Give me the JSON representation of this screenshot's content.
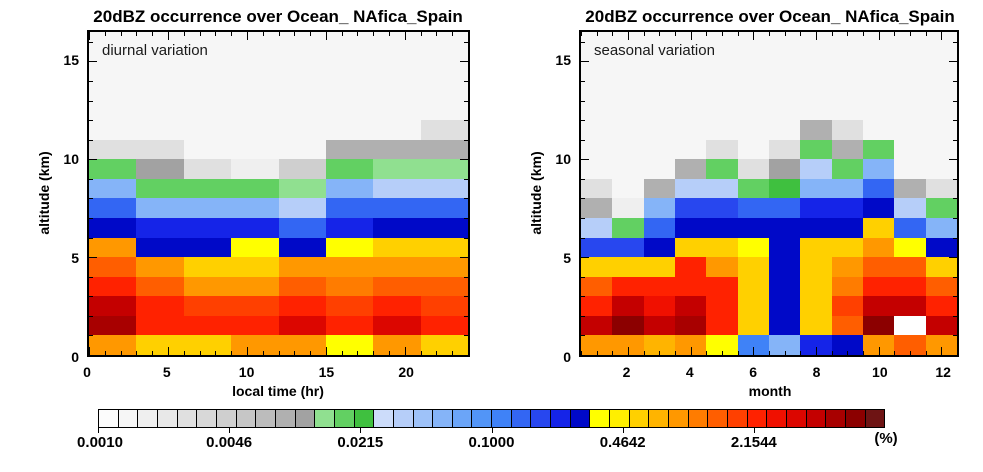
{
  "page": {
    "background": "#ffffff"
  },
  "chart_data": [
    {
      "type": "heatmap",
      "title": "20dBZ occurrence over Ocean_ NAfica_Spain",
      "annotation": "diurnal variation",
      "xlabel": "local time (hr)",
      "ylabel": "altitude (km)",
      "x_range": [
        0,
        24
      ],
      "x_major_ticks": [
        0,
        5,
        10,
        15,
        20
      ],
      "x_minor_step": 1,
      "y_range": [
        0,
        16.5
      ],
      "y_major_ticks": [
        0,
        5,
        10,
        15
      ],
      "y_minor_step": 1,
      "x_bin_hours": 3,
      "y_bin_km": 1,
      "legend": "occurrence percent, log color scale 0.001-10",
      "values_rows_top_to_bottom": [
        [
          0.0013,
          0.0013,
          0.0013,
          0.0013,
          0.0013,
          0.0013,
          0.0013,
          0.0013
        ],
        [
          0.0013,
          0.0013,
          0.0013,
          0.0013,
          0.0013,
          0.0013,
          0.0013,
          0.0013
        ],
        [
          0.0013,
          0.0013,
          0.0013,
          0.0013,
          0.0013,
          0.0013,
          0.0013,
          0.0013
        ],
        [
          0.0013,
          0.0013,
          0.0013,
          0.0013,
          0.0013,
          0.0013,
          0.0013,
          0.0013
        ],
        [
          0.0013,
          0.0013,
          0.0013,
          0.0013,
          0.0013,
          0.0013,
          0.0013,
          0.0028
        ],
        [
          0.0028,
          0.0028,
          0.0013,
          0.0013,
          0.0013,
          0.0089,
          0.0089,
          0.0089
        ],
        [
          0.018,
          0.011,
          0.0028,
          0.0018,
          0.0045,
          0.018,
          0.014,
          0.014
        ],
        [
          0.056,
          0.018,
          0.018,
          0.018,
          0.014,
          0.056,
          0.035,
          0.035
        ],
        [
          0.14,
          0.056,
          0.056,
          0.056,
          0.035,
          0.14,
          0.14,
          0.14
        ],
        [
          0.28,
          0.22,
          0.22,
          0.22,
          0.14,
          0.22,
          0.28,
          0.28
        ],
        [
          0.89,
          0.28,
          0.28,
          0.35,
          0.28,
          0.35,
          0.56,
          0.56
        ],
        [
          1.4,
          0.89,
          0.56,
          0.56,
          0.89,
          0.89,
          0.89,
          0.89
        ],
        [
          2.2,
          1.4,
          0.89,
          0.89,
          1.4,
          1.1,
          1.4,
          1.4
        ],
        [
          4.5,
          2.2,
          1.8,
          1.8,
          2.2,
          1.8,
          2.2,
          1.8
        ],
        [
          5.6,
          2.2,
          2.2,
          2.2,
          3.5,
          2.2,
          3.5,
          2.2
        ],
        [
          0.89,
          0.56,
          0.56,
          0.89,
          0.89,
          0.35,
          0.89,
          0.56
        ]
      ]
    },
    {
      "type": "heatmap",
      "title": "20dBZ occurrence over Ocean_ NAfica_Spain",
      "annotation": "seasonal variation",
      "xlabel": "month",
      "ylabel": "altitude (km)",
      "x_range": [
        0.5,
        12.5
      ],
      "x_major_ticks": [
        2,
        4,
        6,
        8,
        10,
        12
      ],
      "x_minor_step": 0.5,
      "y_range": [
        0,
        16.5
      ],
      "y_major_ticks": [
        0,
        5,
        10,
        15
      ],
      "y_minor_step": 1,
      "x_bin_months": 1,
      "y_bin_km": 1,
      "legend": "occurrence percent, log color scale 0.001-10",
      "values_rows_top_to_bottom": [
        [
          0.0013,
          0.0013,
          0.0013,
          0.0013,
          0.0013,
          0.0013,
          0.0013,
          0.0013,
          0.0013,
          0.0013,
          0.0013,
          0.0013
        ],
        [
          0.0013,
          0.0013,
          0.0013,
          0.0013,
          0.0013,
          0.0013,
          0.0013,
          0.0013,
          0.0013,
          0.0013,
          0.0013,
          0.0013
        ],
        [
          0.0013,
          0.0013,
          0.0013,
          0.0013,
          0.0013,
          0.0013,
          0.0013,
          0.0013,
          0.0013,
          0.0013,
          0.0013,
          0.0013
        ],
        [
          0.0013,
          0.0013,
          0.0013,
          0.0013,
          0.0013,
          0.0013,
          0.0013,
          0.0013,
          0.0013,
          0.0013,
          0.0013,
          0.0013
        ],
        [
          0.0013,
          0.0013,
          0.0013,
          0.0013,
          0.0013,
          0.0013,
          0.0013,
          0.0089,
          0.0028,
          0.0013,
          0.0013,
          0.0013
        ],
        [
          0.0013,
          0.0013,
          0.0013,
          0.0013,
          0.0028,
          0.0013,
          0.0028,
          0.018,
          0.0089,
          0.018,
          0.0013,
          0.0013
        ],
        [
          0.0013,
          0.0013,
          0.0013,
          0.0089,
          0.018,
          0.0028,
          0.011,
          0.035,
          0.018,
          0.056,
          0.0013,
          0.0013
        ],
        [
          0.0028,
          0.0013,
          0.0089,
          0.035,
          0.035,
          0.018,
          0.022,
          0.056,
          0.056,
          0.14,
          0.0089,
          0.0028
        ],
        [
          0.0089,
          0.0018,
          0.056,
          0.18,
          0.18,
          0.14,
          0.14,
          0.22,
          0.22,
          0.28,
          0.035,
          0.018
        ],
        [
          0.035,
          0.018,
          0.14,
          0.28,
          0.28,
          0.28,
          0.28,
          0.28,
          0.28,
          0.56,
          0.14,
          0.056
        ],
        [
          0.18,
          0.18,
          0.28,
          0.56,
          0.56,
          0.35,
          0.28,
          0.56,
          0.56,
          0.89,
          0.35,
          0.28
        ],
        [
          0.56,
          0.56,
          0.56,
          2.2,
          0.89,
          0.56,
          0.28,
          0.56,
          0.89,
          1.4,
          1.4,
          0.56
        ],
        [
          1.4,
          2.2,
          2.2,
          2.2,
          2.2,
          0.56,
          0.28,
          0.56,
          1.1,
          2.2,
          2.2,
          1.4
        ],
        [
          2.2,
          4.5,
          2.8,
          4.5,
          2.2,
          0.56,
          0.28,
          0.56,
          1.8,
          4.5,
          4.5,
          2.2
        ],
        [
          4.5,
          7.1,
          4.5,
          5.6,
          2.2,
          0.56,
          0.28,
          0.56,
          1.4,
          7.1,
          0.0005,
          4.5
        ],
        [
          0.89,
          0.89,
          0.71,
          0.89,
          0.35,
          0.11,
          0.056,
          0.22,
          0.28,
          0.89,
          1.4,
          0.89
        ]
      ]
    }
  ],
  "colorbar": {
    "scale": "log",
    "min": 0.001,
    "max": 10,
    "tick_labels": [
      "0.0010",
      "0.0046",
      "0.0215",
      "0.1000",
      "0.4642",
      "2.1544"
    ],
    "tick_values": [
      0.001,
      0.00464,
      0.02154,
      0.1,
      0.46416,
      2.15443
    ],
    "unit_label": "(%)",
    "below_min_color": "#ffffff",
    "plot_background": "#f6f6f6",
    "palette": [
      "#fcfcfc",
      "#f6f6f6",
      "#efefef",
      "#e8e8e8",
      "#e0e0e0",
      "#d8d8d8",
      "#cfcfcf",
      "#c6c6c6",
      "#bcbcbc",
      "#b0b0b0",
      "#a2a2a2",
      "#90e090",
      "#62d062",
      "#3fc03f",
      "#ccdcfa",
      "#b6cef9",
      "#9ec2f9",
      "#85b4f8",
      "#6ba5f8",
      "#5295f7",
      "#3f82f7",
      "#3366f3",
      "#2847ef",
      "#1524e8",
      "#0009c8",
      "#ffff00",
      "#ffef00",
      "#ffd000",
      "#ffb400",
      "#ff9800",
      "#ff7c00",
      "#ff5e00",
      "#ff4000",
      "#ff2200",
      "#f01000",
      "#dc0600",
      "#c40000",
      "#a80000",
      "#8c0000",
      "#6e1414"
    ]
  }
}
